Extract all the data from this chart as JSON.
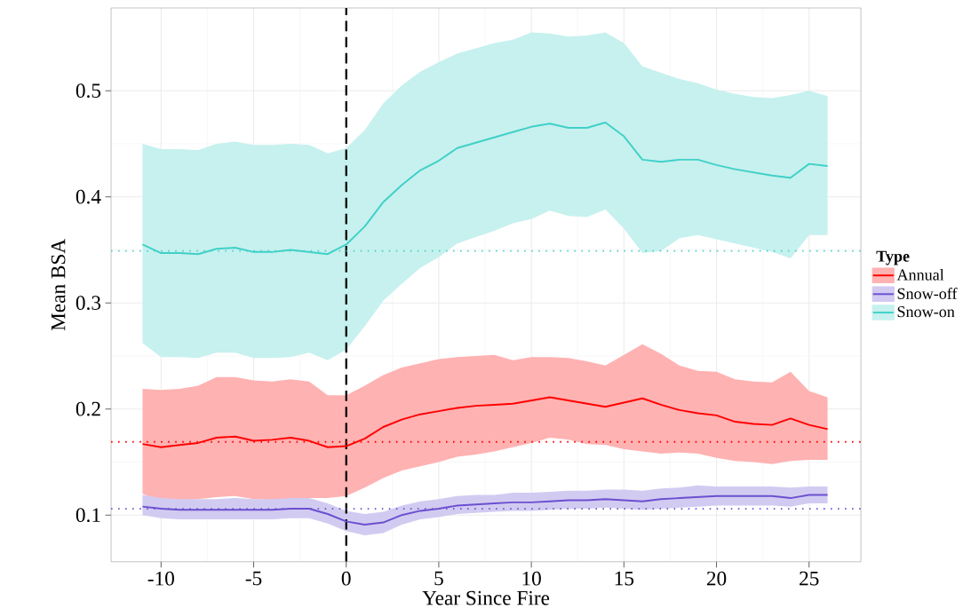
{
  "chart_data": {
    "type": "line",
    "xlabel": "Year Since Fire",
    "ylabel": "Mean BSA",
    "legend_title": "Type",
    "x": [
      -11,
      -10,
      -9,
      -8,
      -7,
      -6,
      -5,
      -4,
      -3,
      -2,
      -1,
      0,
      1,
      2,
      3,
      4,
      5,
      6,
      7,
      8,
      9,
      10,
      11,
      12,
      13,
      14,
      15,
      16,
      17,
      18,
      19,
      20,
      21,
      22,
      23,
      24,
      25,
      26
    ],
    "series": [
      {
        "name": "Annual",
        "color": "#ff0000",
        "values": [
          0.167,
          0.164,
          0.166,
          0.168,
          0.173,
          0.174,
          0.17,
          0.171,
          0.173,
          0.17,
          0.164,
          0.165,
          0.172,
          0.183,
          0.19,
          0.195,
          0.198,
          0.201,
          0.203,
          0.204,
          0.205,
          0.208,
          0.211,
          0.208,
          0.205,
          0.202,
          0.206,
          0.21,
          0.204,
          0.199,
          0.196,
          0.194,
          0.188,
          0.186,
          0.185,
          0.191,
          0.185,
          0.181
        ],
        "upper": [
          0.219,
          0.218,
          0.219,
          0.222,
          0.23,
          0.23,
          0.227,
          0.226,
          0.228,
          0.226,
          0.213,
          0.213,
          0.222,
          0.232,
          0.239,
          0.243,
          0.247,
          0.249,
          0.25,
          0.251,
          0.246,
          0.249,
          0.249,
          0.248,
          0.245,
          0.241,
          0.251,
          0.261,
          0.252,
          0.241,
          0.236,
          0.235,
          0.228,
          0.226,
          0.225,
          0.235,
          0.217,
          0.211
        ],
        "lower": [
          0.12,
          0.113,
          0.114,
          0.115,
          0.117,
          0.118,
          0.115,
          0.114,
          0.115,
          0.116,
          0.116,
          0.118,
          0.126,
          0.135,
          0.142,
          0.146,
          0.15,
          0.155,
          0.157,
          0.16,
          0.164,
          0.168,
          0.173,
          0.171,
          0.167,
          0.166,
          0.162,
          0.16,
          0.158,
          0.159,
          0.158,
          0.154,
          0.151,
          0.15,
          0.148,
          0.151,
          0.152,
          0.152
        ]
      },
      {
        "name": "Snow-off",
        "color": "#6a50d0",
        "values": [
          0.108,
          0.106,
          0.105,
          0.105,
          0.105,
          0.105,
          0.105,
          0.105,
          0.106,
          0.106,
          0.101,
          0.094,
          0.091,
          0.093,
          0.1,
          0.104,
          0.106,
          0.109,
          0.11,
          0.111,
          0.112,
          0.112,
          0.113,
          0.114,
          0.114,
          0.115,
          0.114,
          0.113,
          0.115,
          0.116,
          0.117,
          0.118,
          0.118,
          0.118,
          0.118,
          0.116,
          0.119,
          0.119
        ],
        "upper": [
          0.119,
          0.116,
          0.115,
          0.115,
          0.115,
          0.116,
          0.115,
          0.115,
          0.116,
          0.116,
          0.111,
          0.104,
          0.101,
          0.103,
          0.109,
          0.113,
          0.115,
          0.118,
          0.119,
          0.119,
          0.121,
          0.121,
          0.122,
          0.123,
          0.123,
          0.124,
          0.124,
          0.123,
          0.125,
          0.126,
          0.128,
          0.127,
          0.127,
          0.127,
          0.127,
          0.126,
          0.127,
          0.127
        ],
        "lower": [
          0.1,
          0.097,
          0.096,
          0.096,
          0.096,
          0.096,
          0.096,
          0.096,
          0.097,
          0.097,
          0.092,
          0.085,
          0.081,
          0.083,
          0.091,
          0.096,
          0.098,
          0.101,
          0.102,
          0.103,
          0.104,
          0.104,
          0.105,
          0.106,
          0.106,
          0.107,
          0.106,
          0.105,
          0.106,
          0.107,
          0.108,
          0.109,
          0.109,
          0.109,
          0.109,
          0.108,
          0.111,
          0.111
        ]
      },
      {
        "name": "Snow-on",
        "color": "#40d0c8",
        "values": [
          0.355,
          0.347,
          0.347,
          0.346,
          0.351,
          0.352,
          0.348,
          0.348,
          0.35,
          0.348,
          0.346,
          0.355,
          0.372,
          0.395,
          0.411,
          0.425,
          0.434,
          0.446,
          0.451,
          0.456,
          0.461,
          0.466,
          0.469,
          0.465,
          0.465,
          0.47,
          0.457,
          0.435,
          0.433,
          0.435,
          0.435,
          0.43,
          0.426,
          0.423,
          0.42,
          0.418,
          0.431,
          0.429
        ],
        "upper": [
          0.45,
          0.445,
          0.445,
          0.444,
          0.45,
          0.452,
          0.449,
          0.449,
          0.45,
          0.449,
          0.441,
          0.446,
          0.463,
          0.488,
          0.505,
          0.518,
          0.527,
          0.535,
          0.54,
          0.545,
          0.548,
          0.555,
          0.554,
          0.551,
          0.552,
          0.555,
          0.545,
          0.523,
          0.517,
          0.511,
          0.507,
          0.501,
          0.497,
          0.494,
          0.493,
          0.496,
          0.5,
          0.495
        ],
        "lower": [
          0.262,
          0.249,
          0.249,
          0.248,
          0.253,
          0.253,
          0.248,
          0.248,
          0.249,
          0.253,
          0.246,
          0.256,
          0.278,
          0.302,
          0.318,
          0.333,
          0.343,
          0.356,
          0.362,
          0.368,
          0.375,
          0.379,
          0.387,
          0.382,
          0.381,
          0.388,
          0.37,
          0.347,
          0.349,
          0.361,
          0.364,
          0.36,
          0.356,
          0.352,
          0.348,
          0.342,
          0.364,
          0.364
        ]
      }
    ],
    "ref_lines": [
      {
        "axis": "x",
        "value": 0,
        "color": "#000000",
        "line_style": "dashed"
      },
      {
        "axis": "y",
        "value": 0.349,
        "color": "#40d0c8",
        "line_style": "dotted"
      },
      {
        "axis": "y",
        "value": 0.169,
        "color": "#ff0000",
        "line_style": "dotted"
      },
      {
        "axis": "y",
        "value": 0.106,
        "color": "#6a50d0",
        "line_style": "dotted"
      }
    ],
    "xlim": [
      -12.7,
      27.8
    ],
    "ylim": [
      0.056,
      0.578
    ],
    "xticks": [
      {
        "value": -10,
        "label": "-10"
      },
      {
        "value": -5,
        "label": "-5"
      },
      0,
      5,
      10,
      15,
      20,
      25
    ],
    "yticks": [
      0.1,
      0.2,
      0.3,
      0.4,
      0.5
    ],
    "grid": true,
    "legend": "right",
    "marker": "none",
    "line_style": "solid"
  }
}
